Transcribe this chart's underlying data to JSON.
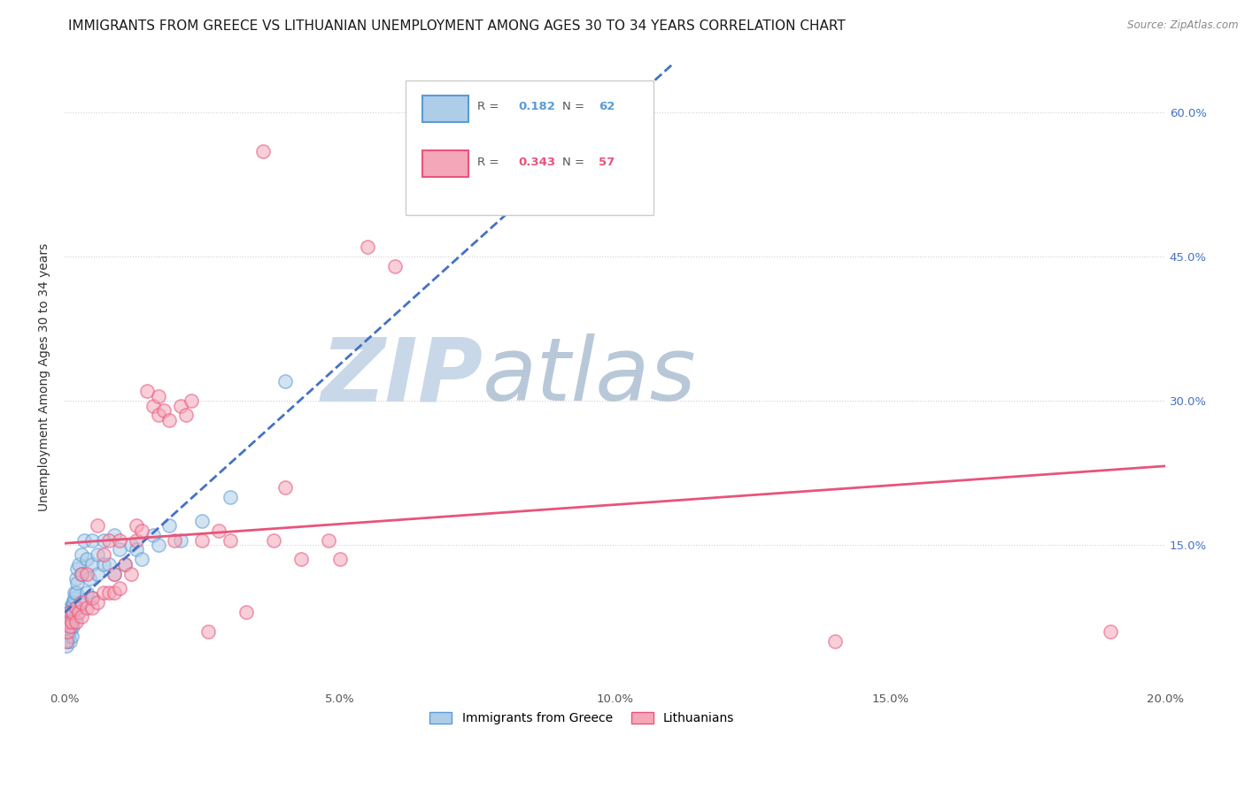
{
  "title": "IMMIGRANTS FROM GREECE VS LITHUANIAN UNEMPLOYMENT AMONG AGES 30 TO 34 YEARS CORRELATION CHART",
  "source": "Source: ZipAtlas.com",
  "ylabel": "Unemployment Among Ages 30 to 34 years",
  "xlim": [
    0.0,
    0.2
  ],
  "ylim": [
    0.0,
    0.65
  ],
  "xtick_labels": [
    "0.0%",
    "",
    "5.0%",
    "",
    "10.0%",
    "",
    "15.0%",
    "",
    "20.0%"
  ],
  "xtick_vals": [
    0.0,
    0.025,
    0.05,
    0.075,
    0.1,
    0.125,
    0.15,
    0.175,
    0.2
  ],
  "ytick_vals": [
    0.15,
    0.3,
    0.45,
    0.6
  ],
  "ytick_right_labels": [
    "15.0%",
    "30.0%",
    "45.0%",
    "60.0%"
  ],
  "blue_color_fill": "#aecde8",
  "blue_color_edge": "#5b9bd5",
  "pink_color_fill": "#f4a7b9",
  "pink_color_edge": "#e8547a",
  "blue_line_color": "#4472c4",
  "pink_line_color": "#e8547a",
  "background_color": "#ffffff",
  "title_fontsize": 11,
  "axis_label_fontsize": 10,
  "tick_fontsize": 9.5,
  "watermark_zip_color": "#c8d8e8",
  "watermark_atlas_color": "#b8c8d8",
  "scatter_size": 120,
  "scatter_alpha": 0.55,
  "blue_R": "0.182",
  "blue_N": "62",
  "pink_R": "0.343",
  "pink_N": "57",
  "blue_scatter_x": [
    0.0003,
    0.0004,
    0.0005,
    0.0005,
    0.0006,
    0.0006,
    0.0007,
    0.0007,
    0.0008,
    0.0008,
    0.0009,
    0.0009,
    0.001,
    0.001,
    0.001,
    0.001,
    0.0012,
    0.0012,
    0.0013,
    0.0013,
    0.0014,
    0.0015,
    0.0015,
    0.0016,
    0.0017,
    0.0018,
    0.002,
    0.002,
    0.002,
    0.002,
    0.0022,
    0.0023,
    0.0025,
    0.003,
    0.003,
    0.003,
    0.0035,
    0.004,
    0.004,
    0.0045,
    0.005,
    0.005,
    0.005,
    0.006,
    0.006,
    0.007,
    0.007,
    0.008,
    0.009,
    0.009,
    0.01,
    0.011,
    0.012,
    0.013,
    0.014,
    0.016,
    0.017,
    0.019,
    0.021,
    0.025,
    0.03,
    0.04
  ],
  "blue_scatter_y": [
    0.045,
    0.055,
    0.05,
    0.065,
    0.055,
    0.07,
    0.06,
    0.075,
    0.065,
    0.08,
    0.07,
    0.085,
    0.05,
    0.06,
    0.07,
    0.08,
    0.055,
    0.065,
    0.075,
    0.085,
    0.09,
    0.065,
    0.08,
    0.09,
    0.095,
    0.1,
    0.075,
    0.085,
    0.1,
    0.115,
    0.11,
    0.125,
    0.13,
    0.09,
    0.12,
    0.14,
    0.155,
    0.1,
    0.135,
    0.115,
    0.095,
    0.13,
    0.155,
    0.12,
    0.14,
    0.13,
    0.155,
    0.13,
    0.12,
    0.16,
    0.145,
    0.13,
    0.15,
    0.145,
    0.135,
    0.16,
    0.15,
    0.17,
    0.155,
    0.175,
    0.2,
    0.32
  ],
  "pink_scatter_x": [
    0.0003,
    0.0005,
    0.0007,
    0.001,
    0.001,
    0.0013,
    0.0015,
    0.002,
    0.002,
    0.0025,
    0.003,
    0.003,
    0.003,
    0.004,
    0.004,
    0.005,
    0.005,
    0.006,
    0.006,
    0.007,
    0.007,
    0.008,
    0.008,
    0.009,
    0.009,
    0.01,
    0.01,
    0.011,
    0.012,
    0.013,
    0.013,
    0.014,
    0.015,
    0.016,
    0.017,
    0.017,
    0.018,
    0.019,
    0.02,
    0.021,
    0.022,
    0.023,
    0.025,
    0.026,
    0.028,
    0.03,
    0.033,
    0.036,
    0.038,
    0.04,
    0.043,
    0.048,
    0.05,
    0.055,
    0.06,
    0.14,
    0.19
  ],
  "pink_scatter_y": [
    0.05,
    0.06,
    0.07,
    0.065,
    0.08,
    0.07,
    0.08,
    0.07,
    0.085,
    0.08,
    0.075,
    0.09,
    0.12,
    0.085,
    0.12,
    0.085,
    0.095,
    0.09,
    0.17,
    0.1,
    0.14,
    0.1,
    0.155,
    0.1,
    0.12,
    0.105,
    0.155,
    0.13,
    0.12,
    0.155,
    0.17,
    0.165,
    0.31,
    0.295,
    0.305,
    0.285,
    0.29,
    0.28,
    0.155,
    0.295,
    0.285,
    0.3,
    0.155,
    0.06,
    0.165,
    0.155,
    0.08,
    0.56,
    0.155,
    0.21,
    0.135,
    0.155,
    0.135,
    0.46,
    0.44,
    0.05,
    0.06
  ]
}
